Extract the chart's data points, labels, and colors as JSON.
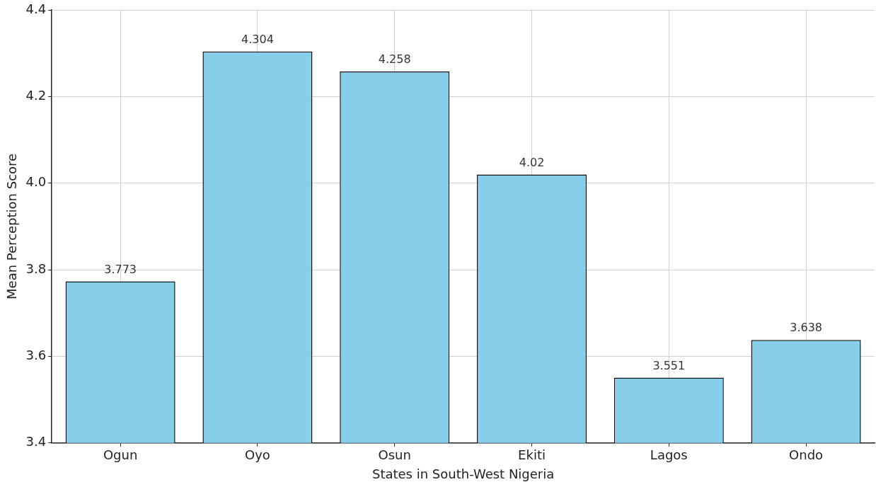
{
  "chart_data": {
    "type": "bar",
    "xlabel": "States in South-West Nigeria",
    "ylabel": "Mean Perception Score",
    "categories": [
      "Ogun",
      "Oyo",
      "Osun",
      "Ekiti",
      "Lagos",
      "Ondo"
    ],
    "values": [
      3.773,
      4.304,
      4.258,
      4.02,
      3.551,
      3.638
    ],
    "color": "#87ceeb",
    "ylim": [
      3.4,
      4.4
    ],
    "yticks": [
      {
        "value": 3.4,
        "label": "3.4"
      },
      {
        "value": 3.6,
        "label": "3.6"
      },
      {
        "value": 3.8,
        "label": "3.8"
      },
      {
        "value": 4.0,
        "label": "4.0"
      },
      {
        "value": 4.2,
        "label": "4.2"
      },
      {
        "value": 4.4,
        "label": "4.4"
      }
    ],
    "grid": true,
    "legend": false,
    "data_labels": true
  }
}
